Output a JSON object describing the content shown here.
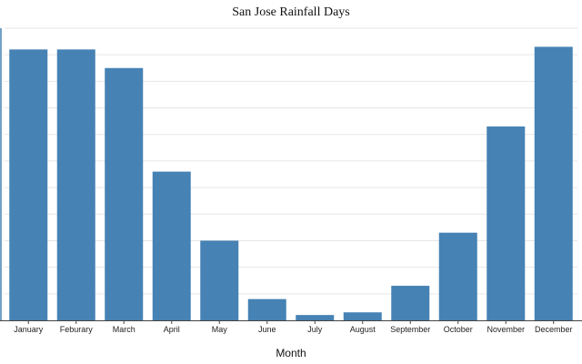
{
  "colors": {
    "bar": "#4682b4",
    "grid": "#e6e6e6",
    "axis": "#444444",
    "y_axis_line": "#4682b4"
  },
  "chart_data": {
    "type": "bar",
    "title": "San Jose Rainfall Days",
    "xlabel": "Month",
    "ylabel": "",
    "categories": [
      "January",
      "Feburary",
      "March",
      "April",
      "May",
      "June",
      "July",
      "August",
      "September",
      "October",
      "November",
      "December"
    ],
    "values": [
      10.2,
      10.2,
      9.5,
      5.6,
      3.0,
      0.8,
      0.2,
      0.3,
      1.3,
      3.3,
      7.3,
      10.3
    ],
    "ylim": [
      0,
      11
    ],
    "grid": true,
    "y_tick_labels_visible": false
  }
}
